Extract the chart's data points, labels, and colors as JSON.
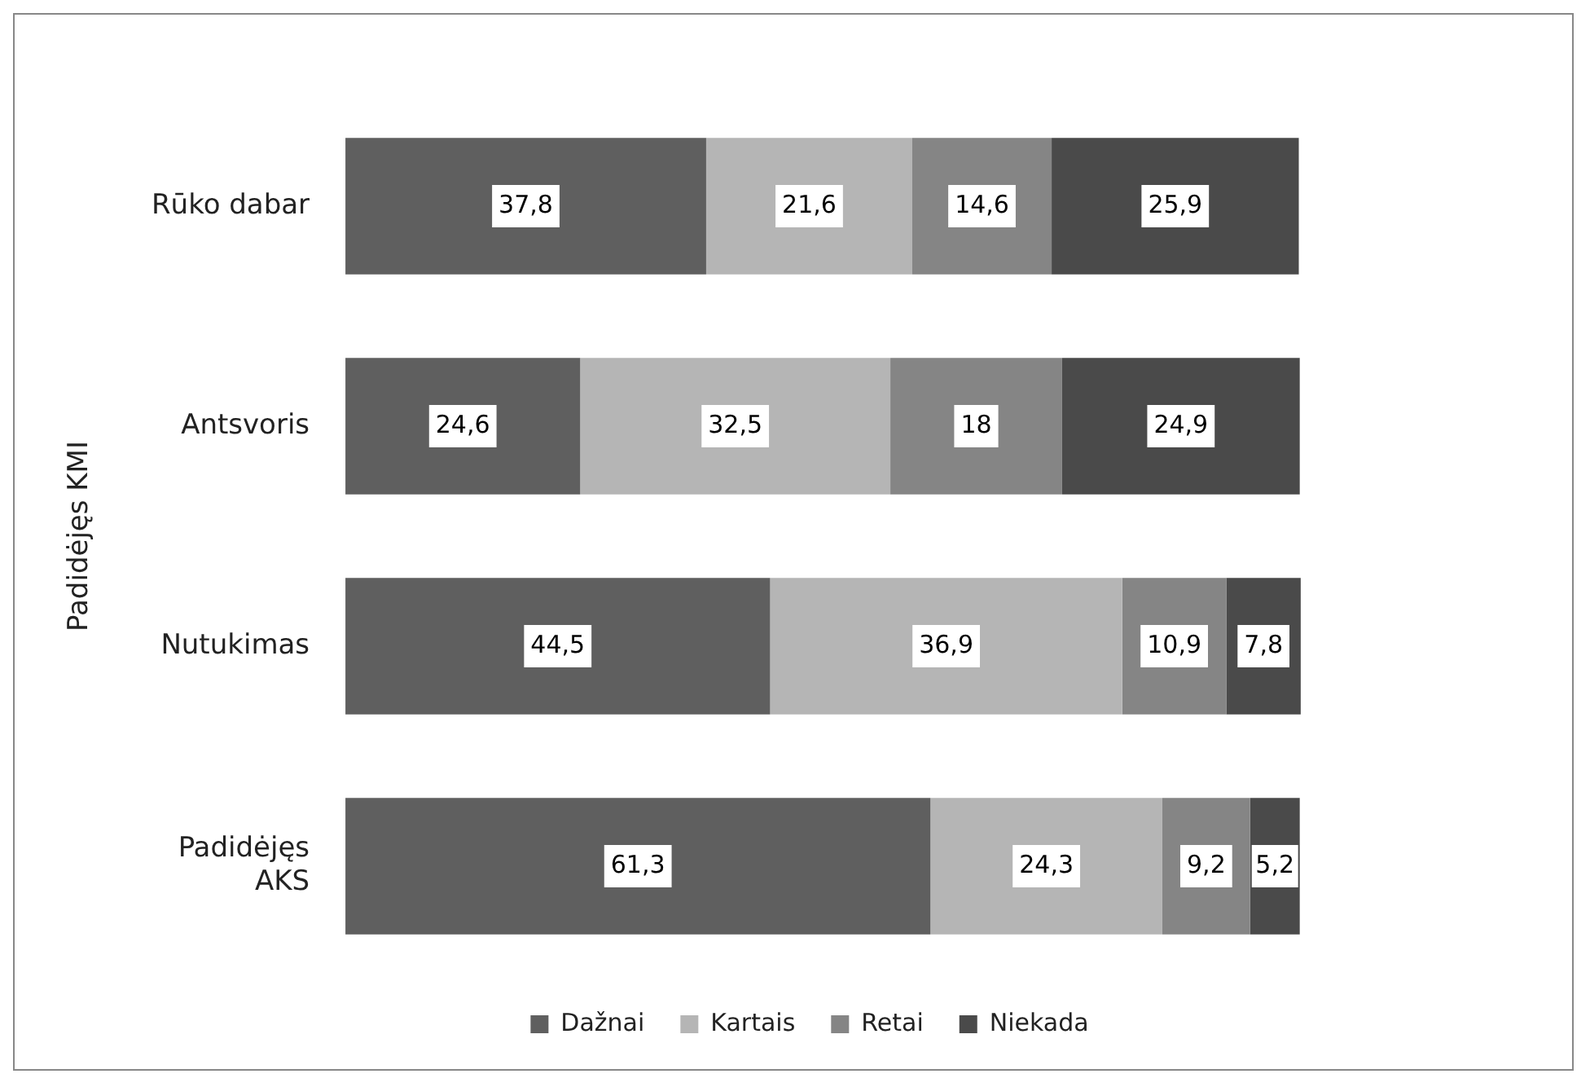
{
  "chart_data": {
    "type": "bar",
    "orientation": "horizontal",
    "stacked": true,
    "grid": false,
    "legend": "bottom",
    "tick_labels": "y",
    "categories": [
      "Rūko dabar",
      "Antsvoris",
      "Nutukimas",
      "Padidėjęs AKS"
    ],
    "series": [
      {
        "name": "Dažnai",
        "color": "#5f5f5f",
        "values": [
          37.8,
          24.6,
          44.5,
          61.3
        ],
        "value_labels": [
          "37,8",
          "24,6",
          "44,5",
          "61,3"
        ]
      },
      {
        "name": "Kartais",
        "color": "#b5b5b5",
        "values": [
          21.6,
          32.5,
          36.9,
          24.3
        ],
        "value_labels": [
          "21,6",
          "32,5",
          "36,9",
          "24,3"
        ]
      },
      {
        "name": "Retai",
        "color": "#858585",
        "values": [
          14.6,
          18,
          10.9,
          9.2
        ],
        "value_labels": [
          "14,6",
          "18",
          "10,9",
          "9,2"
        ]
      },
      {
        "name": "Niekada",
        "color": "#4a4a4a",
        "values": [
          25.9,
          24.9,
          7.8,
          5.2
        ],
        "value_labels": [
          "25,9",
          "24,9",
          "7,8",
          "5,2"
        ]
      }
    ],
    "annotations": [
      "Padidėjęs KMI"
    ]
  }
}
